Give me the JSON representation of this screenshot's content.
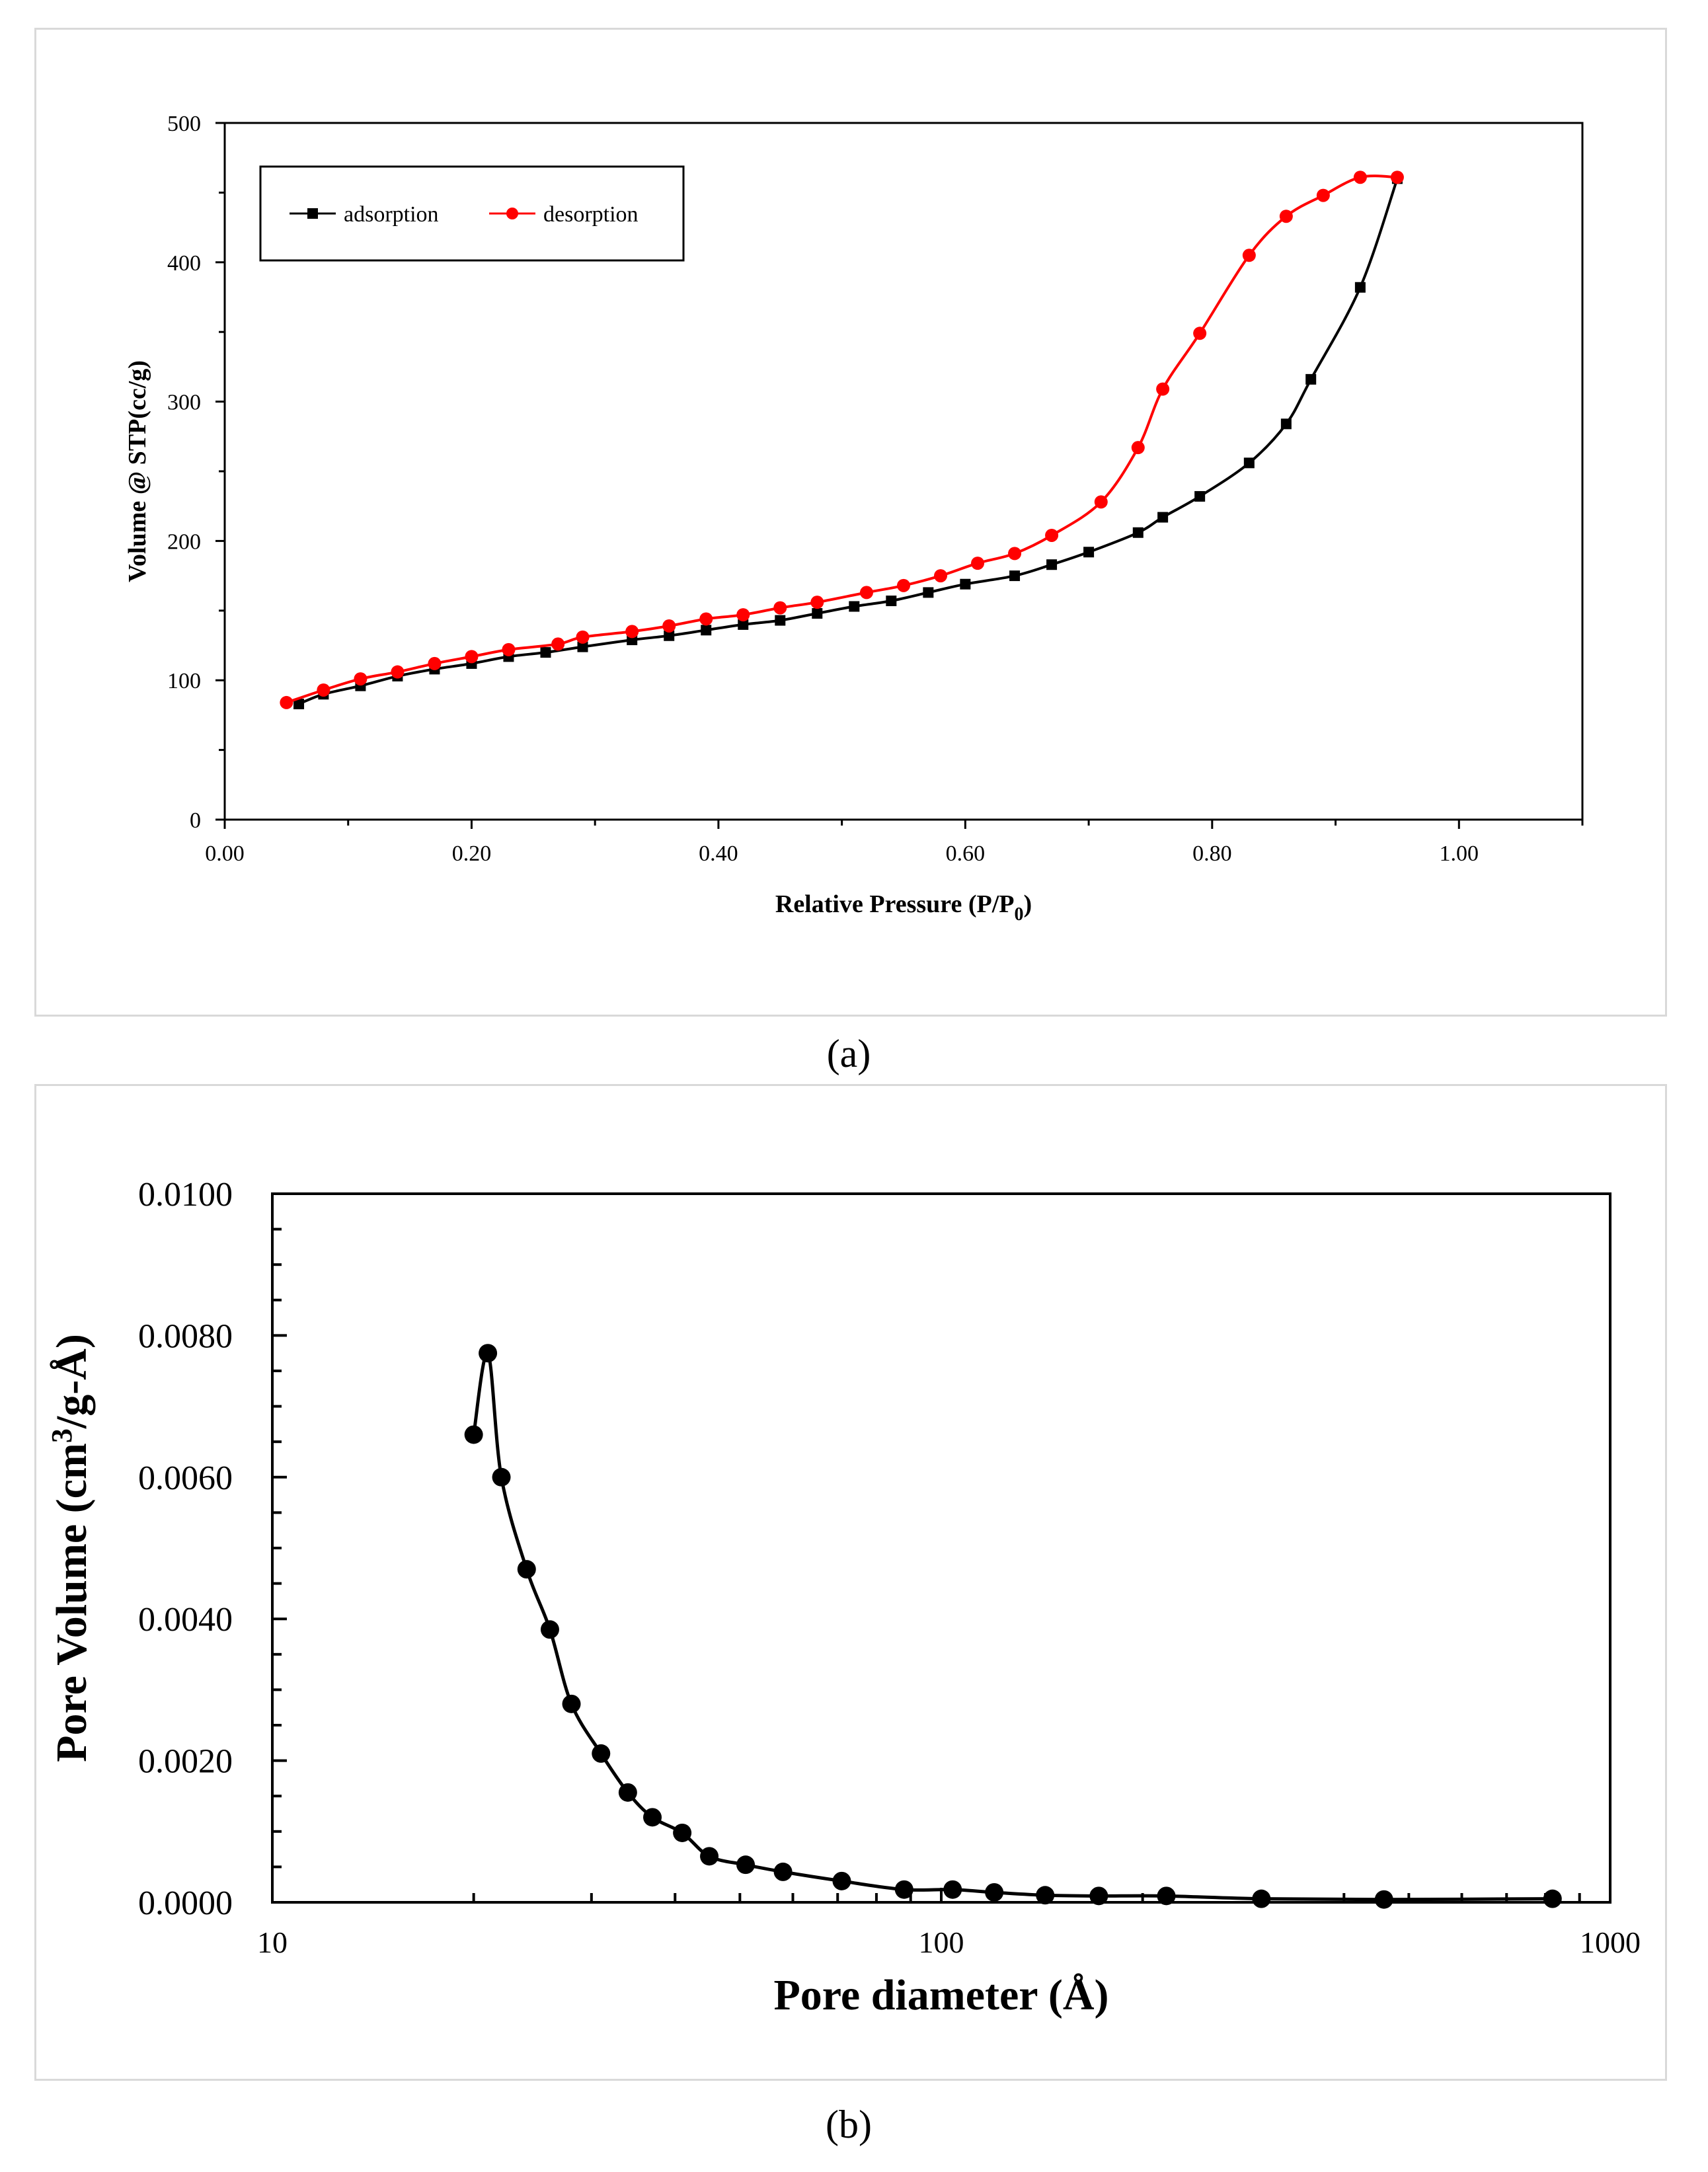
{
  "chart_data": [
    {
      "panel": "a",
      "type": "line",
      "title": "",
      "xlabel": "Relative Pressure (P/P",
      "xlabel_sub": "0",
      "xlabel_end": ")",
      "ylabel": "Volume @ STP(cc/g)",
      "xlim": [
        0,
        1.1
      ],
      "ylim": [
        0,
        500
      ],
      "xticks": [
        0,
        0.2,
        0.4,
        0.6,
        0.8,
        1.0
      ],
      "xtick_labels": [
        "0.00",
        "0.20",
        "0.40",
        "0.60",
        "0.80",
        "1.00"
      ],
      "yticks": [
        0,
        100,
        200,
        300,
        400,
        500
      ],
      "ytick_labels": [
        "0",
        "100",
        "200",
        "300",
        "400",
        "500"
      ],
      "legend_position": "top-left",
      "series": [
        {
          "name": "adsorption",
          "color": "#000000",
          "marker": "square",
          "x": [
            0.06,
            0.08,
            0.11,
            0.14,
            0.17,
            0.2,
            0.23,
            0.26,
            0.29,
            0.33,
            0.36,
            0.39,
            0.42,
            0.45,
            0.48,
            0.51,
            0.54,
            0.57,
            0.6,
            0.64,
            0.67,
            0.7,
            0.74,
            0.76,
            0.79,
            0.83,
            0.86,
            0.88,
            0.92,
            0.95
          ],
          "y": [
            83,
            90,
            96,
            103,
            108,
            112,
            117,
            120,
            124,
            129,
            132,
            136,
            140,
            143,
            148,
            153,
            157,
            163,
            169,
            175,
            183,
            192,
            206,
            217,
            232,
            256,
            284,
            316,
            382,
            460
          ]
        },
        {
          "name": "desorption",
          "color": "#ff0000",
          "marker": "circle",
          "x": [
            0.05,
            0.08,
            0.11,
            0.14,
            0.17,
            0.2,
            0.23,
            0.27,
            0.29,
            0.33,
            0.36,
            0.39,
            0.42,
            0.45,
            0.48,
            0.52,
            0.55,
            0.58,
            0.61,
            0.64,
            0.67,
            0.71,
            0.74,
            0.76,
            0.79,
            0.83,
            0.86,
            0.89,
            0.92,
            0.95
          ],
          "y": [
            84,
            93,
            101,
            106,
            112,
            117,
            122,
            126,
            131,
            135,
            139,
            144,
            147,
            152,
            156,
            163,
            168,
            175,
            184,
            191,
            204,
            228,
            267,
            309,
            349,
            405,
            433,
            448,
            461,
            461
          ]
        }
      ],
      "caption": "(a)"
    },
    {
      "panel": "b",
      "type": "line",
      "title": "",
      "xlabel": "Pore diameter (Å)",
      "ylabel_pre": "Pore Volume  (cm",
      "ylabel_sup": "3",
      "ylabel_post": "/g-Å)",
      "xscale": "log",
      "xlim": [
        10,
        1000
      ],
      "ylim": [
        0,
        0.01
      ],
      "xticks": [
        10,
        100,
        1000
      ],
      "xtick_labels": [
        "10",
        "100",
        "1000"
      ],
      "yticks": [
        0,
        0.002,
        0.004,
        0.006,
        0.008,
        0.01
      ],
      "ytick_labels": [
        "0.0000",
        "0.0020",
        "0.0040",
        "0.0060",
        "0.0080",
        "0.0100"
      ],
      "series": [
        {
          "name": "pore volume",
          "color": "#000000",
          "marker": "circle",
          "x": [
            20,
            21,
            22,
            24,
            26,
            28,
            31,
            34,
            37,
            41,
            45,
            51,
            58,
            71,
            88,
            104,
            120,
            143,
            172,
            217,
            301,
            459,
            820
          ],
          "y": [
            0.0066,
            0.00775,
            0.006,
            0.0047,
            0.00385,
            0.0028,
            0.0021,
            0.00155,
            0.0012,
            0.00098,
            0.00065,
            0.00053,
            0.00043,
            0.0003,
            0.00018,
            0.00018,
            0.00014,
            0.0001,
            9e-05,
            9e-05,
            5e-05,
            4e-05,
            5e-05
          ]
        }
      ],
      "caption": "(b)"
    }
  ]
}
